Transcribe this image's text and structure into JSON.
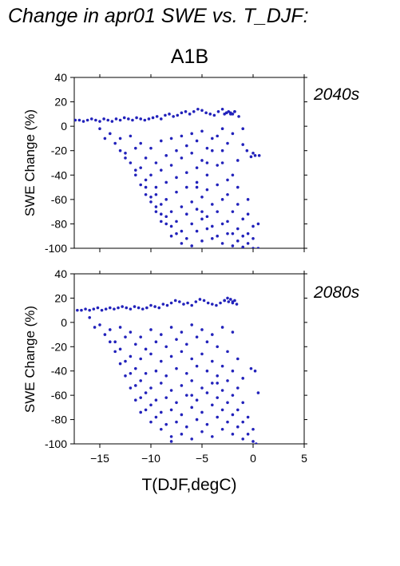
{
  "figure": {
    "title": "Change in apr01 SWE vs. T_DJF:",
    "subtitle": "A1B",
    "xlabel": "T(DJF,degC)",
    "point_color": "#2222bb",
    "label_color": "#2a2aa0"
  },
  "chart_data": [
    {
      "type": "scatter",
      "panel_label": "2040s",
      "xlabel": "T(DJF,degC)",
      "ylabel": "SWE Change (%)",
      "xlim": [
        -17.5,
        5
      ],
      "ylim": [
        -100,
        40
      ],
      "xticks": [
        -15,
        -10,
        -5,
        0,
        5
      ],
      "xtick_labels": [
        "",
        "",
        "",
        "",
        ""
      ],
      "yticks": [
        40,
        20,
        0,
        -20,
        -40,
        -60,
        -80,
        -100
      ],
      "ytick_labels": [
        "40",
        "20",
        "0",
        "-20",
        "-40",
        "-60",
        "-80",
        "-100"
      ],
      "series": [
        {
          "x": [
            -17.4,
            -17.0,
            -16.6,
            -16.2,
            -15.8,
            -15.4,
            -15.0,
            -14.6,
            -14.2,
            -13.8,
            -13.4,
            -13.0,
            -12.6,
            -12.2,
            -11.8,
            -11.4,
            -11.0,
            -10.6,
            -10.2,
            -9.8,
            -9.4,
            -9.0,
            -8.6,
            -8.2,
            -7.8,
            -7.4,
            -7.0,
            -6.6,
            -6.2,
            -5.8,
            -5.4,
            -5.0,
            -4.6,
            -4.2,
            -3.8,
            -3.4,
            -3.0,
            -2.6,
            -2.2,
            -1.8,
            -1.4,
            -1.0,
            -0.6,
            -0.2,
            0.2,
            0.6,
            -15.0,
            -14.0,
            -13.0,
            -12.0,
            -11.0,
            -10.0,
            -9.0,
            -8.0,
            -7.0,
            -6.0,
            -5.0,
            -4.0,
            -3.0,
            -2.0,
            -1.0,
            0.0,
            -14.5,
            -13.5,
            -12.5,
            -11.5,
            -10.5,
            -9.5,
            -8.5,
            -7.5,
            -6.5,
            -5.5,
            -4.5,
            -3.5,
            -2.5,
            -1.5,
            -13.0,
            -12.0,
            -11.0,
            -10.0,
            -9.0,
            -8.0,
            -7.0,
            -6.0,
            -5.0,
            -4.0,
            -3.0,
            -2.0,
            -12.5,
            -11.5,
            -10.5,
            -9.5,
            -8.5,
            -7.5,
            -6.5,
            -5.5,
            -4.5,
            -3.5,
            -2.5,
            -1.5,
            -0.5,
            -11.5,
            -10.5,
            -9.5,
            -8.5,
            -7.5,
            -6.5,
            -5.5,
            -4.5,
            -3.5,
            -2.5,
            -1.5,
            -0.5,
            0.5,
            -11.0,
            -10.0,
            -9.0,
            -8.0,
            -7.0,
            -6.0,
            -5.0,
            -4.0,
            -3.0,
            -2.0,
            -1.0,
            0.0,
            -10.5,
            -9.5,
            -8.5,
            -7.5,
            -6.5,
            -5.5,
            -4.5,
            -3.5,
            -2.5,
            -1.5,
            -0.5,
            -10.0,
            -9.0,
            -8.0,
            -7.0,
            -6.0,
            -5.0,
            -4.0,
            -3.0,
            -2.0,
            -1.0,
            0.0,
            -9.5,
            -8.5,
            -7.5,
            -6.5,
            -5.5,
            -4.5,
            -3.5,
            -2.5,
            -1.5,
            -0.5,
            -9.0,
            -8.0,
            -7.0,
            -6.0,
            -5.0,
            -4.0,
            -3.0,
            -2.0,
            -1.0,
            0.0,
            0.5,
            -2.8,
            -2.6,
            -2.4,
            -2.2,
            -2.0,
            -1.8,
            -3.0,
            -4.5,
            -5.5,
            -5.0
          ],
          "y": [
            5,
            5,
            4,
            5,
            6,
            5,
            4,
            6,
            5,
            4,
            6,
            5,
            7,
            6,
            5,
            7,
            6,
            5,
            6,
            7,
            8,
            6,
            9,
            10,
            8,
            9,
            11,
            12,
            10,
            12,
            14,
            13,
            11,
            10,
            9,
            12,
            14,
            11,
            10,
            12,
            8,
            -2,
            -20,
            -25,
            -24,
            -24,
            -2,
            -6,
            -10,
            -8,
            -14,
            -18,
            -12,
            -10,
            -8,
            -6,
            -4,
            -10,
            -2,
            -6,
            -15,
            -22,
            -10,
            -14,
            -22,
            -18,
            -26,
            -30,
            -24,
            -20,
            -16,
            -12,
            -18,
            -8,
            -14,
            -28,
            -20,
            -30,
            -34,
            -40,
            -36,
            -32,
            -26,
            -22,
            -28,
            -20,
            -30,
            -40,
            -26,
            -36,
            -44,
            -50,
            -46,
            -42,
            -38,
            -34,
            -40,
            -32,
            -44,
            -50,
            -60,
            -40,
            -50,
            -56,
            -60,
            -54,
            -50,
            -46,
            -52,
            -48,
            -56,
            -64,
            -72,
            -80,
            -48,
            -58,
            -64,
            -70,
            -66,
            -62,
            -58,
            -64,
            -60,
            -70,
            -76,
            -82,
            -56,
            -66,
            -74,
            -78,
            -72,
            -68,
            -74,
            -70,
            -78,
            -84,
            -88,
            -62,
            -72,
            -82,
            -86,
            -80,
            -76,
            -82,
            -80,
            -88,
            -90,
            -92,
            -70,
            -80,
            -88,
            -92,
            -86,
            -84,
            -90,
            -88,
            -94,
            -96,
            -78,
            -90,
            -96,
            -98,
            -94,
            -92,
            -96,
            -98,
            -99,
            -100,
            -100,
            10,
            11,
            12,
            11,
            10,
            12,
            -20,
            -30,
            -50,
            -70
          ]
        }
      ]
    },
    {
      "type": "scatter",
      "panel_label": "2080s",
      "xlabel": "T(DJF,degC)",
      "ylabel": "SWE Change (%)",
      "xlim": [
        -17.5,
        5
      ],
      "ylim": [
        -100,
        40
      ],
      "xticks": [
        -15,
        -10,
        -5,
        0,
        5
      ],
      "xtick_labels": [
        "−15",
        "−10",
        "−5",
        "0",
        "5"
      ],
      "yticks": [
        40,
        20,
        0,
        -20,
        -40,
        -60,
        -80,
        -100
      ],
      "ytick_labels": [
        "40",
        "20",
        "0",
        "-20",
        "-40",
        "-60",
        "-80",
        "-100"
      ],
      "series": [
        {
          "x": [
            -17.2,
            -16.8,
            -16.4,
            -16.0,
            -15.6,
            -15.2,
            -14.8,
            -14.4,
            -14.0,
            -13.6,
            -13.2,
            -12.8,
            -12.4,
            -12.0,
            -11.6,
            -11.2,
            -10.8,
            -10.4,
            -10.0,
            -9.6,
            -9.2,
            -8.8,
            -8.4,
            -8.0,
            -7.6,
            -7.2,
            -6.8,
            -6.4,
            -6.0,
            -5.6,
            -5.2,
            -4.8,
            -4.4,
            -4.0,
            -3.6,
            -3.2,
            -2.8,
            -2.4,
            -2.0,
            -1.6,
            -0.2,
            0.2,
            0.5,
            -16.0,
            -15.0,
            -14.0,
            -13.0,
            -12.0,
            -11.0,
            -10.0,
            -9.0,
            -8.0,
            -7.0,
            -6.0,
            -5.0,
            -4.0,
            -3.0,
            -2.0,
            -15.5,
            -14.5,
            -13.5,
            -12.5,
            -11.5,
            -10.5,
            -9.5,
            -8.5,
            -7.5,
            -6.5,
            -5.5,
            -4.5,
            -3.5,
            -2.5,
            -1.5,
            -14.0,
            -13.0,
            -12.0,
            -11.0,
            -10.0,
            -9.0,
            -8.0,
            -7.0,
            -6.0,
            -5.0,
            -4.0,
            -3.0,
            -2.0,
            -1.0,
            -13.5,
            -12.5,
            -11.5,
            -10.5,
            -9.5,
            -8.5,
            -7.5,
            -6.5,
            -5.5,
            -4.5,
            -3.5,
            -2.5,
            -1.5,
            -13.0,
            -12.0,
            -11.0,
            -10.0,
            -9.0,
            -8.0,
            -7.0,
            -6.0,
            -5.0,
            -4.0,
            -3.0,
            -2.0,
            -1.0,
            -12.5,
            -11.5,
            -10.5,
            -9.5,
            -8.5,
            -7.5,
            -6.5,
            -5.5,
            -4.5,
            -3.5,
            -2.5,
            -1.5,
            -0.5,
            -12.0,
            -11.0,
            -10.0,
            -9.0,
            -8.0,
            -7.0,
            -6.0,
            -5.0,
            -4.0,
            -3.0,
            -2.0,
            -1.0,
            0.0,
            -11.5,
            -10.5,
            -9.5,
            -8.5,
            -7.5,
            -6.5,
            -5.5,
            -4.5,
            -3.5,
            -2.5,
            -1.5,
            -0.5,
            -11.0,
            -10.0,
            -9.0,
            -8.0,
            -7.0,
            -6.0,
            -5.0,
            -4.0,
            -3.0,
            -2.0,
            -1.0,
            0.0,
            0.3,
            -2.8,
            -2.5,
            -2.2,
            -2.0,
            -1.8,
            -3.5,
            -6.0,
            -8.0
          ],
          "y": [
            10,
            10,
            11,
            10,
            11,
            12,
            10,
            11,
            12,
            11,
            12,
            13,
            12,
            11,
            13,
            12,
            11,
            12,
            14,
            13,
            12,
            15,
            14,
            16,
            18,
            17,
            15,
            16,
            14,
            17,
            19,
            18,
            16,
            15,
            14,
            16,
            18,
            17,
            16,
            15,
            -38,
            -40,
            -58,
            4,
            -2,
            -6,
            -4,
            -8,
            -12,
            -6,
            -10,
            -4,
            -8,
            -2,
            -6,
            -10,
            -4,
            -8,
            -4,
            -10,
            -16,
            -12,
            -18,
            -22,
            -16,
            -20,
            -14,
            -18,
            -12,
            -16,
            -20,
            -24,
            -30,
            -16,
            -22,
            -28,
            -30,
            -26,
            -32,
            -28,
            -24,
            -30,
            -26,
            -32,
            -36,
            -40,
            -46,
            -24,
            -32,
            -38,
            -42,
            -40,
            -44,
            -38,
            -42,
            -36,
            -40,
            -44,
            -48,
            -54,
            -34,
            -42,
            -48,
            -54,
            -50,
            -56,
            -52,
            -48,
            -54,
            -50,
            -56,
            -60,
            -66,
            -44,
            -52,
            -58,
            -64,
            -62,
            -66,
            -60,
            -64,
            -58,
            -62,
            -66,
            -72,
            -78,
            -54,
            -62,
            -68,
            -74,
            -72,
            -76,
            -70,
            -74,
            -68,
            -72,
            -76,
            -82,
            -88,
            -64,
            -72,
            -78,
            -84,
            -82,
            -86,
            -80,
            -84,
            -78,
            -82,
            -86,
            -92,
            -74,
            -82,
            -88,
            -94,
            -92,
            -96,
            -90,
            -94,
            -88,
            -92,
            -96,
            -98,
            -100,
            18,
            20,
            19,
            17,
            18,
            -50,
            -60,
            -98
          ]
        }
      ]
    }
  ]
}
